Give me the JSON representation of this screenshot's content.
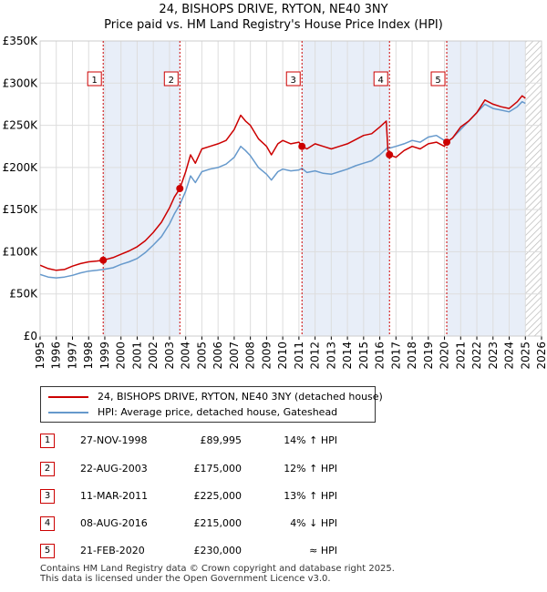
{
  "chart_data": {
    "type": "line",
    "title": "24, BISHOPS DRIVE, RYTON, NE40 3NY",
    "subtitle": "Price paid vs. HM Land Registry's House Price Index (HPI)",
    "xlim": [
      1995,
      2026
    ],
    "ylim": [
      0,
      350000
    ],
    "x_ticks": [
      "1995",
      "1996",
      "1997",
      "1998",
      "1999",
      "2000",
      "2001",
      "2002",
      "2003",
      "2004",
      "2005",
      "2006",
      "2007",
      "2008",
      "2009",
      "2010",
      "2011",
      "2012",
      "2013",
      "2014",
      "2015",
      "2016",
      "2017",
      "2018",
      "2019",
      "2020",
      "2021",
      "2022",
      "2023",
      "2024",
      "2025",
      "2026"
    ],
    "y_ticks": [
      {
        "value": 0,
        "label": "£0"
      },
      {
        "value": 50000,
        "label": "£50K"
      },
      {
        "value": 100000,
        "label": "£100K"
      },
      {
        "value": 150000,
        "label": "£150K"
      },
      {
        "value": 200000,
        "label": "£200K"
      },
      {
        "value": 250000,
        "label": "£250K"
      },
      {
        "value": 300000,
        "label": "£300K"
      },
      {
        "value": 350000,
        "label": "£350K"
      }
    ],
    "grid": true,
    "shaded_ranges": [
      [
        1998.9,
        2003.64
      ],
      [
        2011.19,
        2016.6
      ],
      [
        2020.14,
        2025.0
      ]
    ],
    "hatched_from": 2025.0,
    "series": [
      {
        "name": "24, BISHOPS DRIVE, RYTON, NE40 3NY (detached house)",
        "color": "#cc0000",
        "x": [
          1995.0,
          1995.5,
          1996.0,
          1996.5,
          1997.0,
          1997.5,
          1998.0,
          1998.5,
          1998.9,
          1999.5,
          2000.0,
          2000.5,
          2001.0,
          2001.5,
          2002.0,
          2002.5,
          2003.0,
          2003.3,
          2003.64,
          2004.0,
          2004.3,
          2004.6,
          2005.0,
          2005.5,
          2006.0,
          2006.5,
          2007.0,
          2007.4,
          2007.7,
          2008.0,
          2008.5,
          2009.0,
          2009.3,
          2009.7,
          2010.0,
          2010.5,
          2011.0,
          2011.19,
          2011.5,
          2012.0,
          2012.5,
          2013.0,
          2013.5,
          2014.0,
          2014.5,
          2015.0,
          2015.5,
          2016.0,
          2016.4,
          2016.5,
          2016.6,
          2017.0,
          2017.5,
          2018.0,
          2018.5,
          2019.0,
          2019.5,
          2020.0,
          2020.14,
          2020.5,
          2021.0,
          2021.5,
          2022.0,
          2022.5,
          2023.0,
          2023.5,
          2024.0,
          2024.5,
          2024.8,
          2025.0
        ],
        "y": [
          84000,
          80000,
          78000,
          79000,
          83000,
          86000,
          88000,
          89000,
          89995,
          93000,
          97000,
          101000,
          106000,
          113000,
          123000,
          135000,
          152000,
          165000,
          175000,
          195000,
          215000,
          205000,
          222000,
          225000,
          228000,
          232000,
          245000,
          262000,
          255000,
          250000,
          234000,
          225000,
          215000,
          228000,
          232000,
          228000,
          230000,
          225000,
          222000,
          228000,
          225000,
          222000,
          225000,
          228000,
          233000,
          238000,
          240000,
          248000,
          255000,
          220000,
          215000,
          212000,
          220000,
          225000,
          222000,
          228000,
          230000,
          225000,
          230000,
          235000,
          248000,
          255000,
          265000,
          280000,
          275000,
          272000,
          270000,
          278000,
          285000,
          282000
        ]
      },
      {
        "name": "HPI: Average price, detached house, Gateshead",
        "color": "#6699cc",
        "x": [
          1995.0,
          1995.5,
          1996.0,
          1996.5,
          1997.0,
          1997.5,
          1998.0,
          1998.5,
          1998.9,
          1999.5,
          2000.0,
          2000.5,
          2001.0,
          2001.5,
          2002.0,
          2002.5,
          2003.0,
          2003.3,
          2003.64,
          2004.0,
          2004.3,
          2004.6,
          2005.0,
          2005.5,
          2006.0,
          2006.5,
          2007.0,
          2007.4,
          2007.7,
          2008.0,
          2008.5,
          2009.0,
          2009.3,
          2009.7,
          2010.0,
          2010.5,
          2011.0,
          2011.19,
          2011.5,
          2012.0,
          2012.5,
          2013.0,
          2013.5,
          2014.0,
          2014.5,
          2015.0,
          2015.5,
          2016.0,
          2016.4,
          2016.5,
          2016.6,
          2017.0,
          2017.5,
          2018.0,
          2018.5,
          2019.0,
          2019.5,
          2020.0,
          2020.14,
          2020.5,
          2021.0,
          2021.5,
          2022.0,
          2022.5,
          2023.0,
          2023.5,
          2024.0,
          2024.5,
          2024.8,
          2025.0
        ],
        "y": [
          73000,
          70000,
          69000,
          70000,
          72000,
          75000,
          77000,
          78000,
          79000,
          81000,
          85000,
          88000,
          92000,
          99000,
          108000,
          118000,
          133000,
          145000,
          156000,
          172000,
          190000,
          182000,
          195000,
          198000,
          200000,
          204000,
          212000,
          225000,
          220000,
          214000,
          200000,
          192000,
          185000,
          195000,
          198000,
          196000,
          197000,
          199000,
          194000,
          196000,
          193000,
          192000,
          195000,
          198000,
          202000,
          205000,
          208000,
          215000,
          222000,
          224000,
          223000,
          225000,
          228000,
          232000,
          230000,
          236000,
          238000,
          232000,
          230000,
          235000,
          245000,
          255000,
          265000,
          275000,
          270000,
          268000,
          266000,
          272000,
          278000,
          276000
        ]
      }
    ],
    "sale_points": [
      {
        "num": "1",
        "x": 1998.9,
        "y": 89995
      },
      {
        "num": "2",
        "x": 2003.64,
        "y": 175000
      },
      {
        "num": "3",
        "x": 2011.19,
        "y": 225000
      },
      {
        "num": "4",
        "x": 2016.6,
        "y": 215000
      },
      {
        "num": "5",
        "x": 2020.14,
        "y": 230000
      }
    ]
  },
  "legend": {
    "property_label": "24, BISHOPS DRIVE, RYTON, NE40 3NY (detached house)",
    "hpi_label": "HPI: Average price, detached house, Gateshead"
  },
  "sales": [
    {
      "num": "1",
      "date": "27-NOV-1998",
      "price": "£89,995",
      "hpi": "14% ↑ HPI"
    },
    {
      "num": "2",
      "date": "22-AUG-2003",
      "price": "£175,000",
      "hpi": "12% ↑ HPI"
    },
    {
      "num": "3",
      "date": "11-MAR-2011",
      "price": "£225,000",
      "hpi": "13% ↑ HPI"
    },
    {
      "num": "4",
      "date": "08-AUG-2016",
      "price": "£215,000",
      "hpi": "4% ↓ HPI"
    },
    {
      "num": "5",
      "date": "21-FEB-2020",
      "price": "£230,000",
      "hpi": "≈ HPI"
    }
  ],
  "footer": {
    "line1": "Contains HM Land Registry data © Crown copyright and database right 2025.",
    "line2": "This data is licensed under the Open Government Licence v3.0."
  },
  "colors": {
    "property": "#cc0000",
    "hpi": "#6699cc",
    "shade": "#e8eef8"
  }
}
